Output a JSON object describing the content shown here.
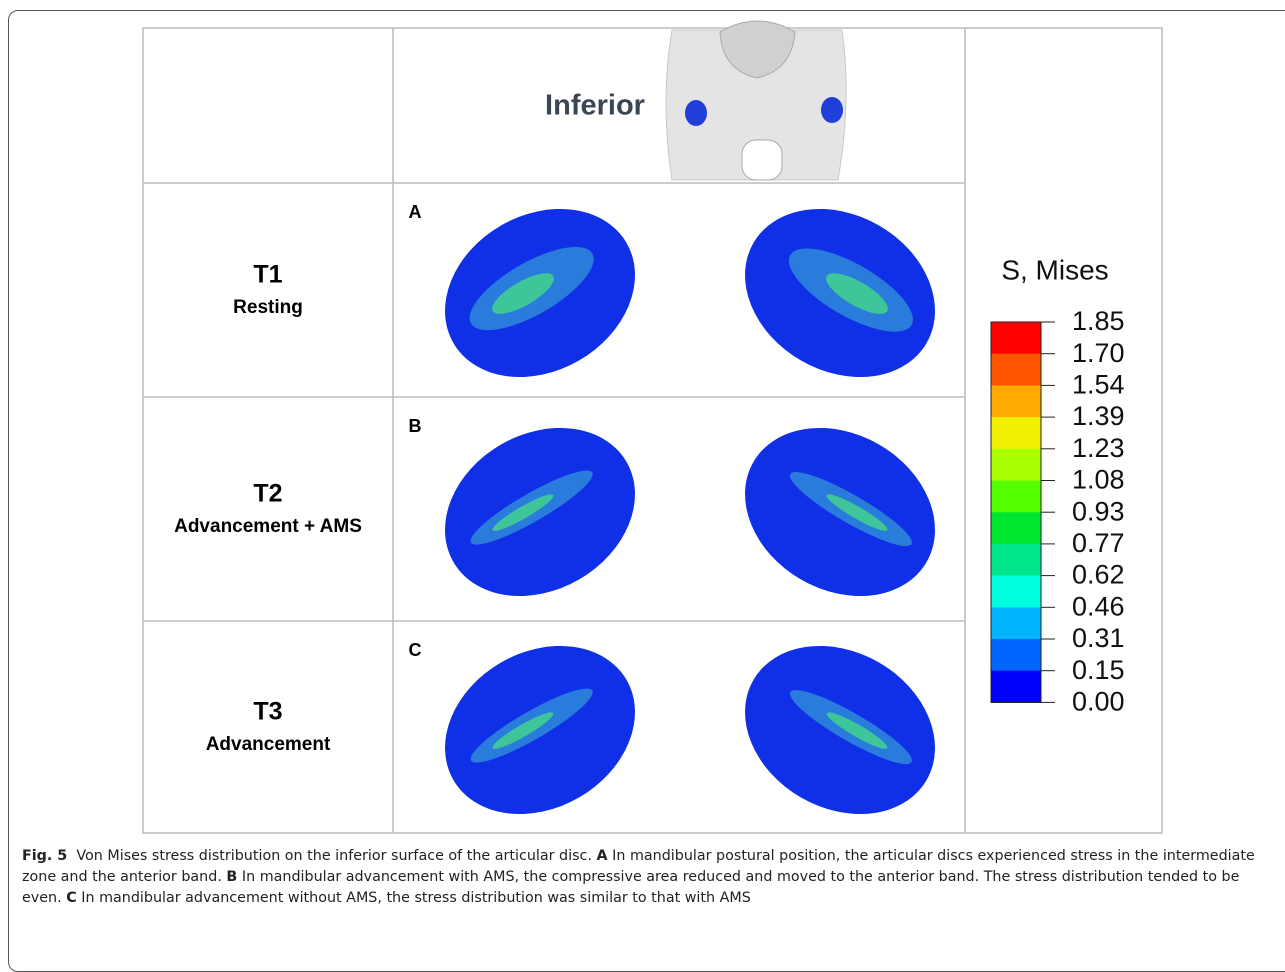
{
  "header": {
    "title": "Inferior"
  },
  "rows": [
    {
      "letter": "A",
      "label": "T1",
      "sublabel": "Resting"
    },
    {
      "letter": "B",
      "label": "T2",
      "sublabel": "Advancement + AMS"
    },
    {
      "letter": "C",
      "label": "T3",
      "sublabel": "Advancement"
    }
  ],
  "legend": {
    "title": "S, Mises",
    "ticks": [
      "1.85",
      "1.70",
      "1.54",
      "1.39",
      "1.23",
      "1.08",
      "0.93",
      "0.77",
      "0.62",
      "0.46",
      "0.31",
      "0.15",
      "0.00"
    ],
    "colors": [
      "#ff0000",
      "#ff5500",
      "#ffaa00",
      "#f0f000",
      "#aaff00",
      "#55ff00",
      "#00e62e",
      "#00e68c",
      "#00ffe0",
      "#00b4ff",
      "#0064ff",
      "#0000ff"
    ]
  },
  "caption": {
    "label": "Fig. 5",
    "text": "Von Mises stress distribution on the inferior surface of the articular disc.",
    "parts": [
      {
        "letter": "A",
        "text": "In mandibular postural position, the articular discs experienced stress in the intermediate zone and the anterior band."
      },
      {
        "letter": "B",
        "text": "In mandibular advancement with AMS, the compressive area reduced and moved to the anterior band. The stress distribution tended to be even."
      },
      {
        "letter": "C",
        "text": "In mandibular advancement without AMS, the stress distribution was similar to that with AMS"
      }
    ]
  }
}
